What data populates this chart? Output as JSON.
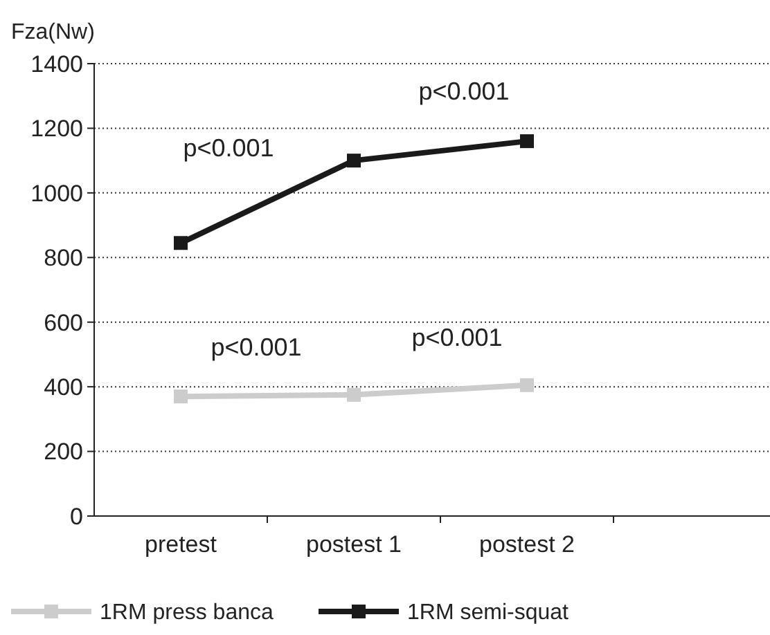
{
  "chart_data": {
    "type": "line",
    "ylabel": "Fza(Nw)",
    "categories": [
      "pretest",
      "postest 1",
      "postest 2",
      null
    ],
    "series": [
      {
        "name": "1RM press banca",
        "color": "#cccccc",
        "values": [
          370,
          375,
          405,
          null
        ]
      },
      {
        "name": "1RM semi-squat",
        "color": "#1a1a1a",
        "values": [
          845,
          1100,
          1160,
          null
        ]
      }
    ],
    "ylim": [
      0,
      1400
    ],
    "yticks": [
      0,
      200,
      400,
      600,
      800,
      1000,
      1200,
      1400
    ],
    "grid": "y",
    "legend": "bottom",
    "marker": "square",
    "line_style": "solid",
    "annotations": [
      "p<0.001",
      "p<0.001",
      "p<0.001",
      "p<0.001"
    ]
  }
}
